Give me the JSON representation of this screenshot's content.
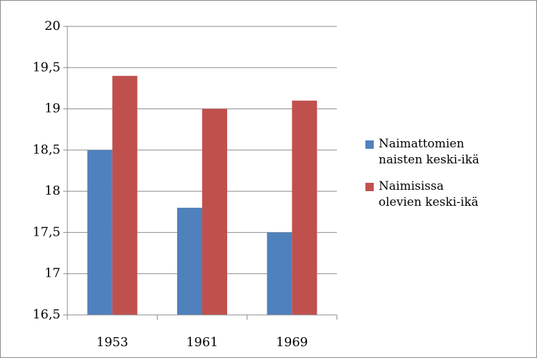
{
  "chart_data": {
    "type": "bar",
    "categories": [
      "1953",
      "1961",
      "1969"
    ],
    "series": [
      {
        "name": "Naimattomien naisten keski-ikä",
        "color": "#4f81bd",
        "values": [
          18.5,
          17.8,
          17.5
        ]
      },
      {
        "name": "Naimisissa olevien keski-ikä",
        "color": "#c0504d",
        "values": [
          19.4,
          19.0,
          19.1
        ]
      }
    ],
    "ylim": [
      16.5,
      20
    ],
    "yticks": [
      {
        "value": 16.5,
        "label": "16,5"
      },
      17,
      {
        "value": 17.5,
        "label": "17,5"
      },
      18,
      {
        "value": 18.5,
        "label": "18,5"
      },
      19,
      {
        "value": 19.5,
        "label": "19,5"
      },
      20
    ],
    "grid": true,
    "legend": "right"
  }
}
